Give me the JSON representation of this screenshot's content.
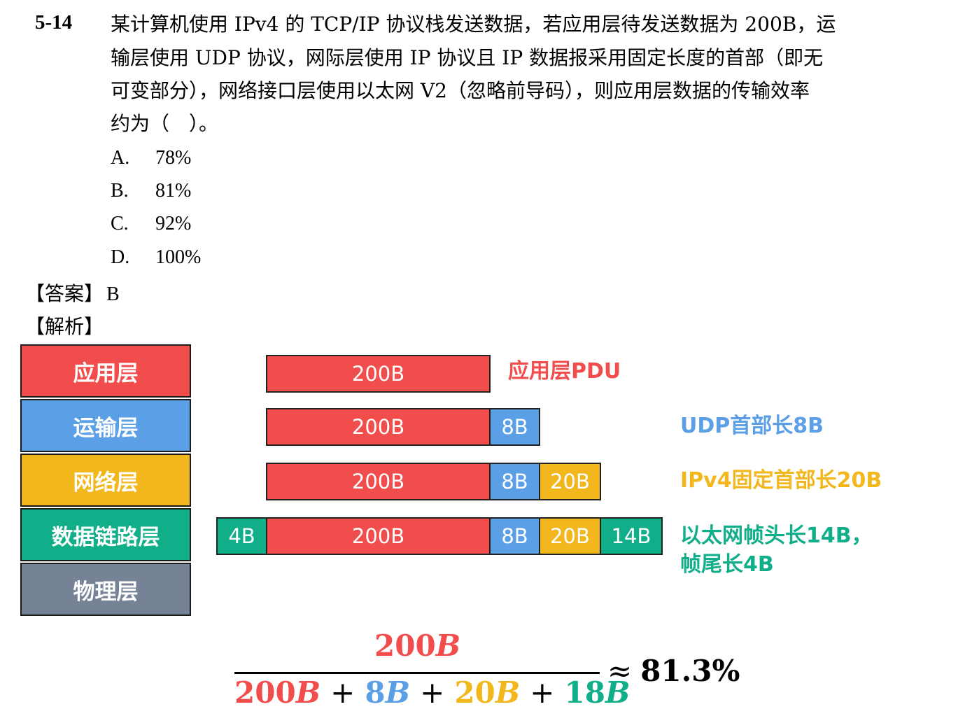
{
  "question": {
    "number": "5-14",
    "lines": [
      "某计算机使用 IPv4 的 TCP/IP 协议栈发送数据，若应用层待发送数据为 200B，运",
      "输层使用 UDP 协议，网际层使用 IP 协议且 IP 数据报采用固定长度的首部（即无",
      "可变部分），网络接口层使用以太网 V2（忽略前导码），则应用层数据的传输效率",
      "约为（　）。"
    ],
    "options": [
      {
        "label": "A.",
        "text": "78%"
      },
      {
        "label": "B.",
        "text": "81%"
      },
      {
        "label": "C.",
        "text": "92%"
      },
      {
        "label": "D.",
        "text": "100%"
      }
    ]
  },
  "answer": {
    "tag": "【答案】",
    "value": "B"
  },
  "analysis": {
    "tag": "【解析】"
  },
  "layers": [
    "应用层",
    "运输层",
    "网络层",
    "数据链路层",
    "物理层"
  ],
  "segments": {
    "data": "200B",
    "udp": "8B",
    "ip": "20B",
    "eth_head": "14B",
    "eth_tail": "4B"
  },
  "notes": {
    "app": "应用层PDU",
    "udp": "UDP首部长8B",
    "ip": "IPv4固定首部长20B",
    "eth_line1": "以太网帧头长14B，",
    "eth_line2": "帧尾长4B"
  },
  "formula": {
    "numerator": "200",
    "den_terms": [
      "200",
      "8",
      "20",
      "18"
    ],
    "unit": "B",
    "plus": "+",
    "approx": "≈",
    "result": "81.3%"
  },
  "colors": {
    "application": "#f24d4d",
    "transport": "#5b9fe6",
    "network": "#f2b71d",
    "datalink": "#11ae8a",
    "physical": "#768396"
  }
}
